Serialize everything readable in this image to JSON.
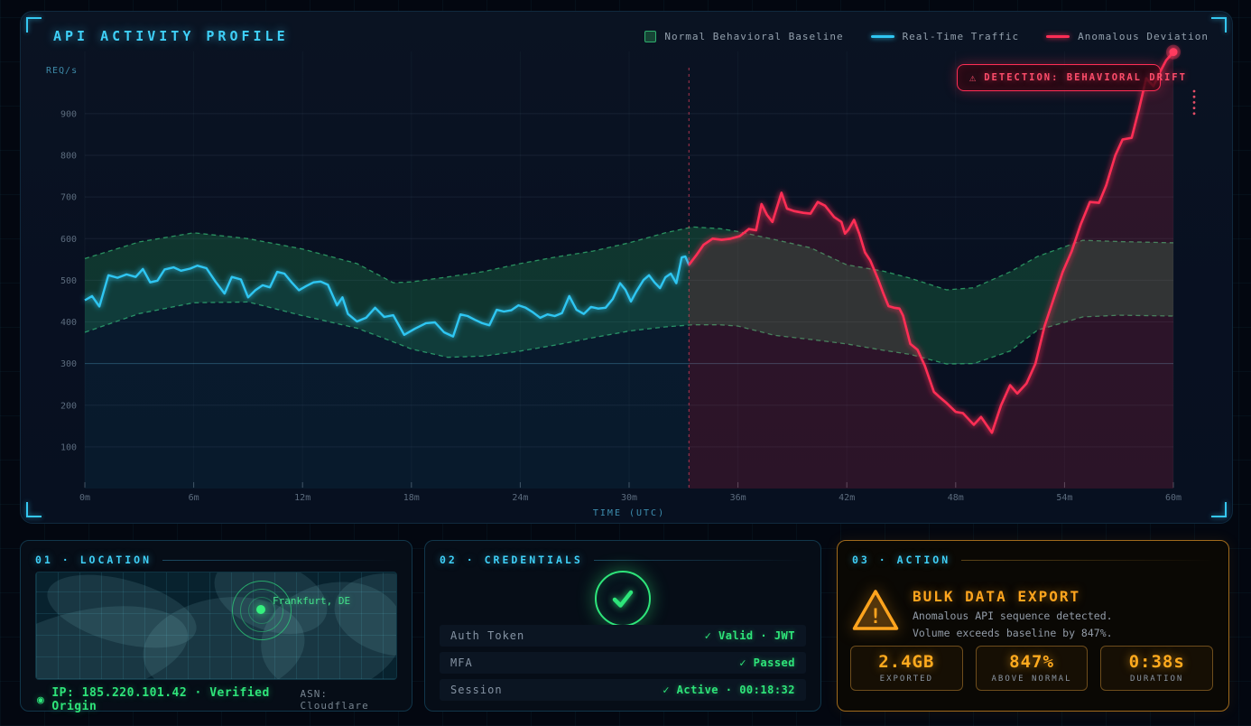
{
  "chart": {
    "title": "API ACTIVITY PROFILE",
    "legend": [
      {
        "label": "Normal Behavioral Baseline",
        "type": "band",
        "color": "#2fae6e"
      },
      {
        "label": "Real-Time Traffic",
        "type": "line",
        "color": "#2fc6f2"
      },
      {
        "label": "Anomalous Deviation",
        "type": "line",
        "color": "#ff2d55"
      }
    ],
    "detection_banner": {
      "icon_char": "⚠",
      "text": "DETECTION: BEHAVIORAL DRIFT"
    }
  },
  "chart_data": {
    "type": "line",
    "title": "API ACTIVITY PROFILE",
    "xlabel": "TIME (UTC)",
    "ylabel": "REQ/s",
    "x_unit": "minutes",
    "xlim": [
      0,
      60
    ],
    "ylim": [
      0,
      1050
    ],
    "x_ticks": [
      "0m",
      "6m",
      "12m",
      "18m",
      "24m",
      "30m",
      "36m",
      "42m",
      "48m",
      "54m",
      "60m"
    ],
    "y_ticks": [
      100,
      200,
      300,
      400,
      500,
      600,
      700,
      800,
      900
    ],
    "grid": true,
    "highlight_gridline_value": 300,
    "anomaly_start_minute": 33.3,
    "baseline_band": {
      "x": [
        0,
        3,
        6,
        9,
        12,
        15,
        17,
        18,
        20,
        22,
        24,
        26,
        28,
        30,
        32,
        33.5,
        35,
        36,
        38,
        40,
        42,
        44,
        45.5,
        47.5,
        49,
        51,
        52.5,
        55,
        57,
        60
      ],
      "upper": [
        552,
        592,
        614,
        600,
        575,
        540,
        494,
        496,
        508,
        521,
        540,
        556,
        570,
        590,
        614,
        628,
        624,
        617,
        598,
        578,
        537,
        522,
        505,
        477,
        482,
        520,
        557,
        596,
        593,
        590
      ],
      "lower": [
        375,
        420,
        446,
        448,
        415,
        385,
        352,
        335,
        315,
        318,
        330,
        345,
        362,
        378,
        388,
        393,
        393,
        390,
        368,
        358,
        347,
        332,
        322,
        299,
        300,
        330,
        380,
        412,
        416,
        414
      ]
    },
    "series": [
      {
        "name": "Real-Time Traffic",
        "color": "#2fc6f2",
        "points": [
          [
            0,
            452
          ],
          [
            0.4,
            462
          ],
          [
            0.8,
            437
          ],
          [
            1.3,
            512
          ],
          [
            1.8,
            506
          ],
          [
            2.3,
            514
          ],
          [
            2.8,
            508
          ],
          [
            3.2,
            527
          ],
          [
            3.6,
            495
          ],
          [
            4,
            499
          ],
          [
            4.4,
            526
          ],
          [
            4.9,
            531
          ],
          [
            5.3,
            523
          ],
          [
            5.8,
            528
          ],
          [
            6.2,
            535
          ],
          [
            6.7,
            529
          ],
          [
            7.2,
            497
          ],
          [
            7.7,
            468
          ],
          [
            8.1,
            508
          ],
          [
            8.6,
            502
          ],
          [
            9,
            459
          ],
          [
            9.4,
            476
          ],
          [
            9.8,
            488
          ],
          [
            10.2,
            483
          ],
          [
            10.6,
            520
          ],
          [
            11,
            516
          ],
          [
            11.4,
            495
          ],
          [
            11.8,
            476
          ],
          [
            12.2,
            486
          ],
          [
            12.6,
            495
          ],
          [
            13,
            497
          ],
          [
            13.4,
            489
          ],
          [
            13.9,
            440
          ],
          [
            14.2,
            459
          ],
          [
            14.5,
            419
          ],
          [
            15,
            401
          ],
          [
            15.5,
            410
          ],
          [
            16,
            434
          ],
          [
            16.5,
            412
          ],
          [
            17,
            416
          ],
          [
            17.6,
            369
          ],
          [
            18.2,
            384
          ],
          [
            18.8,
            397
          ],
          [
            19.3,
            399
          ],
          [
            19.8,
            375
          ],
          [
            20.3,
            365
          ],
          [
            20.7,
            418
          ],
          [
            21.1,
            414
          ],
          [
            21.5,
            405
          ],
          [
            21.9,
            397
          ],
          [
            22.3,
            392
          ],
          [
            22.7,
            429
          ],
          [
            23.1,
            425
          ],
          [
            23.5,
            428
          ],
          [
            23.9,
            440
          ],
          [
            24.3,
            434
          ],
          [
            24.7,
            423
          ],
          [
            25.1,
            410
          ],
          [
            25.5,
            418
          ],
          [
            25.9,
            414
          ],
          [
            26.3,
            421
          ],
          [
            26.7,
            462
          ],
          [
            27.1,
            429
          ],
          [
            27.5,
            419
          ],
          [
            27.9,
            436
          ],
          [
            28.3,
            432
          ],
          [
            28.7,
            434
          ],
          [
            29.1,
            455
          ],
          [
            29.5,
            493
          ],
          [
            29.8,
            477
          ],
          [
            30.1,
            449
          ],
          [
            30.4,
            473
          ],
          [
            30.8,
            501
          ],
          [
            31.1,
            512
          ],
          [
            31.4,
            495
          ],
          [
            31.7,
            481
          ],
          [
            32,
            507
          ],
          [
            32.3,
            516
          ],
          [
            32.6,
            493
          ],
          [
            32.9,
            555
          ],
          [
            33.1,
            557
          ],
          [
            33.3,
            537
          ]
        ]
      },
      {
        "name": "Anomalous Deviation",
        "color": "#ff2d55",
        "endpoint_dot": true,
        "points": [
          [
            33.3,
            537
          ],
          [
            33.7,
            560
          ],
          [
            34.1,
            585
          ],
          [
            34.6,
            600
          ],
          [
            35.1,
            597
          ],
          [
            35.6,
            600
          ],
          [
            36.1,
            606
          ],
          [
            36.6,
            623
          ],
          [
            37,
            620
          ],
          [
            37.3,
            683
          ],
          [
            37.6,
            657
          ],
          [
            37.9,
            640
          ],
          [
            38.4,
            710
          ],
          [
            38.7,
            672
          ],
          [
            39.1,
            666
          ],
          [
            39.6,
            662
          ],
          [
            40,
            660
          ],
          [
            40.4,
            688
          ],
          [
            40.8,
            679
          ],
          [
            41.3,
            652
          ],
          [
            41.7,
            640
          ],
          [
            41.9,
            612
          ],
          [
            42.1,
            622
          ],
          [
            42.4,
            645
          ],
          [
            42.7,
            610
          ],
          [
            43,
            567
          ],
          [
            43.3,
            547
          ],
          [
            43.7,
            505
          ],
          [
            44,
            470
          ],
          [
            44.3,
            438
          ],
          [
            44.6,
            434
          ],
          [
            44.9,
            432
          ],
          [
            45.1,
            415
          ],
          [
            45.5,
            347
          ],
          [
            45.9,
            333
          ],
          [
            46.3,
            295
          ],
          [
            46.8,
            232
          ],
          [
            47.1,
            220
          ],
          [
            47.5,
            205
          ],
          [
            48,
            184
          ],
          [
            48.4,
            181
          ],
          [
            49,
            153
          ],
          [
            49.4,
            172
          ],
          [
            50,
            134
          ],
          [
            50.5,
            200
          ],
          [
            51,
            248
          ],
          [
            51.4,
            228
          ],
          [
            51.9,
            252
          ],
          [
            52.4,
            300
          ],
          [
            52.9,
            390
          ],
          [
            53.4,
            455
          ],
          [
            53.9,
            520
          ],
          [
            54.4,
            570
          ],
          [
            54.9,
            635
          ],
          [
            55.4,
            688
          ],
          [
            55.9,
            686
          ],
          [
            56.3,
            728
          ],
          [
            56.8,
            800
          ],
          [
            57.2,
            838
          ],
          [
            57.7,
            842
          ],
          [
            58.1,
            910
          ],
          [
            58.5,
            985
          ],
          [
            58.9,
            966
          ],
          [
            59.2,
            995
          ],
          [
            59.6,
            1028
          ],
          [
            60,
            1048
          ]
        ]
      }
    ]
  },
  "cards": {
    "location": {
      "header": "01 · LOCATION",
      "marker_label": "Frankfurt, DE",
      "footer_icon": "◉",
      "footer_left": "IP: 185.220.101.42 · Verified Origin",
      "footer_right": "ASN: Cloudflare"
    },
    "credentials": {
      "header": "02 · CREDENTIALS",
      "rows": [
        {
          "label": "Auth Token",
          "value": "✓ Valid · JWT"
        },
        {
          "label": "MFA",
          "value": "✓ Passed"
        },
        {
          "label": "Session",
          "value": "✓ Active · 00:18:32"
        }
      ]
    },
    "action": {
      "header": "03 · ACTION",
      "warning_char": "!",
      "heading": "BULK DATA EXPORT",
      "description_line1": "Anomalous API sequence detected.",
      "description_line2": "Volume exceeds baseline by 847%.",
      "stats": [
        {
          "value": "2.4GB",
          "label": "EXPORTED"
        },
        {
          "value": "847%",
          "label": "ABOVE NORMAL"
        },
        {
          "value": "0:38s",
          "label": "DURATION"
        }
      ]
    }
  },
  "colors": {
    "accent_cyan": "#3fd0f8",
    "line_cyan": "#2fc6f2",
    "band_green": "#2fa56a",
    "status_green": "#2ee57a",
    "alert_red": "#ff2d55",
    "warning_orange": "#ffa41e",
    "bg": "#030710"
  }
}
